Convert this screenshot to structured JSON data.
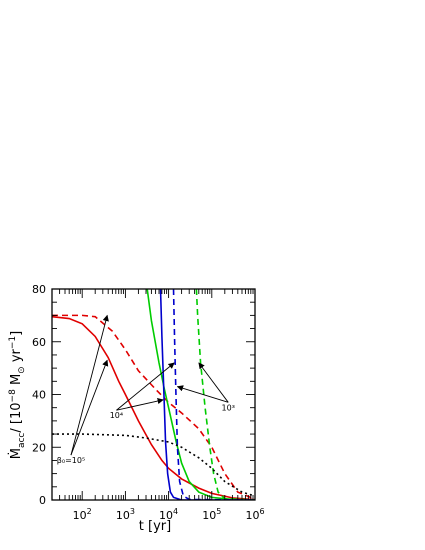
{
  "chart_data": {
    "type": "line",
    "xscale": "log",
    "xlim": [
      20,
      1000000
    ],
    "ylim": [
      0,
      80
    ],
    "xlabel": "t [yr]",
    "ylabel_parts": {
      "main": "Ṁ",
      "sub1": "acc",
      "mid": "/ [10",
      "sup1": "−8",
      "unit": " M",
      "sub2": "⊙",
      "tail": " yr",
      "sup2": "−1",
      "close": "]"
    },
    "x_ticks": [
      {
        "value": 100,
        "base": "10",
        "exp": "2"
      },
      {
        "value": 1000,
        "base": "10",
        "exp": "3"
      },
      {
        "value": 10000,
        "base": "10",
        "exp": "4"
      },
      {
        "value": 100000,
        "base": "10",
        "exp": "5"
      },
      {
        "value": 1000000,
        "base": "10",
        "exp": "6"
      }
    ],
    "y_ticks": [
      {
        "value": 0,
        "label": "0"
      },
      {
        "value": 20,
        "label": "20"
      },
      {
        "value": 40,
        "label": "40"
      },
      {
        "value": 60,
        "label": "60"
      },
      {
        "value": 80,
        "label": "80"
      }
    ],
    "series": [
      {
        "color": "#e00000",
        "dash": "solid",
        "points": [
          [
            20,
            69.5
          ],
          [
            50,
            68.8
          ],
          [
            100,
            66.8
          ],
          [
            200,
            62
          ],
          [
            400,
            54
          ],
          [
            700,
            45
          ],
          [
            1000,
            40
          ],
          [
            2000,
            30
          ],
          [
            4000,
            21
          ],
          [
            7000,
            15
          ],
          [
            10000,
            12
          ],
          [
            20000,
            8
          ],
          [
            50000,
            4.5
          ],
          [
            100000,
            2.5
          ],
          [
            300000,
            0.8
          ],
          [
            1000000,
            0.1
          ]
        ]
      },
      {
        "color": "#e00000",
        "dash": "dash",
        "points": [
          [
            20,
            70
          ],
          [
            50,
            70
          ],
          [
            100,
            70
          ],
          [
            200,
            69.5
          ],
          [
            500,
            64
          ],
          [
            1000,
            57
          ],
          [
            2000,
            49
          ],
          [
            5000,
            42
          ],
          [
            10000,
            37
          ],
          [
            20000,
            33
          ],
          [
            50000,
            27
          ],
          [
            100000,
            20
          ],
          [
            200000,
            10
          ],
          [
            400000,
            3
          ],
          [
            1000000,
            0.3
          ]
        ]
      },
      {
        "color": "#00cc00",
        "dash": "solid",
        "points": [
          [
            3200,
            80
          ],
          [
            4000,
            68
          ],
          [
            6000,
            52
          ],
          [
            8000,
            42
          ],
          [
            10000,
            35
          ],
          [
            15000,
            22
          ],
          [
            20000,
            14
          ],
          [
            30000,
            7
          ],
          [
            50000,
            3
          ],
          [
            100000,
            1
          ],
          [
            300000,
            0.2
          ],
          [
            1000000,
            0
          ]
        ]
      },
      {
        "color": "#00cc00",
        "dash": "dash",
        "points": [
          [
            44000,
            80
          ],
          [
            47000,
            70
          ],
          [
            55000,
            52
          ],
          [
            70000,
            35
          ],
          [
            90000,
            20
          ],
          [
            110000,
            10
          ],
          [
            140000,
            3
          ],
          [
            200000,
            0.5
          ],
          [
            1000000,
            0
          ]
        ]
      },
      {
        "color": "#0000cc",
        "dash": "solid",
        "points": [
          [
            6500,
            80
          ],
          [
            7000,
            62
          ],
          [
            7800,
            40
          ],
          [
            8500,
            22
          ],
          [
            9500,
            10
          ],
          [
            11000,
            3
          ],
          [
            13000,
            1
          ],
          [
            20000,
            0
          ],
          [
            1000000,
            0
          ]
        ]
      },
      {
        "color": "#0000cc",
        "dash": "dash",
        "points": [
          [
            13000,
            80
          ],
          [
            13800,
            60
          ],
          [
            14800,
            40
          ],
          [
            16000,
            20
          ],
          [
            18000,
            7
          ],
          [
            22000,
            1.5
          ],
          [
            30000,
            0.2
          ],
          [
            1000000,
            0
          ]
        ]
      },
      {
        "color": "#000000",
        "dash": "dot",
        "points": [
          [
            20,
            25
          ],
          [
            100,
            25
          ],
          [
            1000,
            24.5
          ],
          [
            3000,
            23.5
          ],
          [
            10000,
            22
          ],
          [
            20000,
            20
          ],
          [
            50000,
            16
          ],
          [
            100000,
            12
          ],
          [
            200000,
            7
          ],
          [
            500000,
            3
          ],
          [
            1000000,
            1.5
          ]
        ]
      }
    ],
    "annotations": [
      {
        "label": "β₀=10⁵",
        "at": [
          55,
          14
        ],
        "arrows_to": [
          [
            380,
            53
          ],
          [
            380,
            70
          ]
        ]
      },
      {
        "label": "10⁴",
        "at": [
          620,
          31
        ],
        "arrows_to": [
          [
            7500,
            38
          ],
          [
            13500,
            52
          ]
        ]
      },
      {
        "label": "10³",
        "at": [
          240000,
          34
        ],
        "arrows_to": [
          [
            16000,
            43
          ],
          [
            50000,
            52
          ]
        ]
      }
    ]
  }
}
